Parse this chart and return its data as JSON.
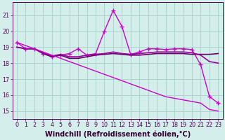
{
  "background_color": "#d4eeeb",
  "grid_color": "#aed4d0",
  "xlabel": "Windchill (Refroidissement éolien,°C)",
  "xlim": [
    -0.5,
    23.5
  ],
  "ylim": [
    14.5,
    21.8
  ],
  "yticks": [
    15,
    16,
    17,
    18,
    19,
    20,
    21
  ],
  "xticks": [
    0,
    1,
    2,
    3,
    4,
    5,
    6,
    7,
    8,
    9,
    10,
    11,
    12,
    13,
    14,
    15,
    16,
    17,
    18,
    19,
    20,
    21,
    22,
    23
  ],
  "series": [
    {
      "x": [
        0,
        1,
        2,
        3,
        4,
        5,
        6,
        7,
        8,
        9,
        10,
        11,
        12,
        13,
        14,
        15,
        16,
        17,
        18,
        19,
        20,
        21,
        22,
        23
      ],
      "y": [
        19.3,
        18.9,
        18.9,
        18.6,
        18.4,
        18.5,
        18.6,
        18.9,
        18.5,
        18.6,
        20.0,
        21.3,
        20.3,
        18.55,
        18.7,
        18.9,
        18.9,
        18.85,
        18.9,
        18.9,
        18.85,
        17.9,
        15.9,
        15.5
      ],
      "marker": "+",
      "linewidth": 1.0,
      "color": "#cc00cc",
      "markersize": 4
    },
    {
      "x": [
        0,
        1,
        2,
        3,
        4,
        5,
        6,
        7,
        8,
        9,
        10,
        11,
        12,
        13,
        14,
        15,
        16,
        17,
        18,
        19,
        20,
        21,
        22,
        23
      ],
      "y": [
        19.0,
        18.9,
        18.9,
        18.6,
        18.4,
        18.5,
        18.3,
        18.3,
        18.4,
        18.5,
        18.55,
        18.6,
        18.55,
        18.5,
        18.5,
        18.55,
        18.6,
        18.6,
        18.6,
        18.6,
        18.55,
        18.55,
        18.55,
        18.6
      ],
      "marker": "",
      "linewidth": 1.2,
      "color": "#660066",
      "markersize": 0
    },
    {
      "x": [
        0,
        1,
        2,
        3,
        4,
        5,
        6,
        7,
        8,
        9,
        10,
        11,
        12,
        13,
        14,
        15,
        16,
        17,
        18,
        19,
        20,
        21,
        22,
        23
      ],
      "y": [
        19.0,
        18.9,
        18.9,
        18.65,
        18.45,
        18.55,
        18.4,
        18.4,
        18.5,
        18.55,
        18.6,
        18.7,
        18.6,
        18.55,
        18.6,
        18.65,
        18.7,
        18.7,
        18.7,
        18.7,
        18.65,
        18.5,
        18.1,
        18.0
      ],
      "marker": "",
      "linewidth": 1.2,
      "color": "#990099",
      "markersize": 0
    },
    {
      "x": [
        0,
        1,
        2,
        3,
        4,
        5,
        6,
        7,
        8,
        9,
        10,
        11,
        12,
        13,
        14,
        15,
        16,
        17,
        18,
        19,
        20,
        21,
        22,
        23
      ],
      "y": [
        19.3,
        19.1,
        18.9,
        18.7,
        18.5,
        18.3,
        18.1,
        17.9,
        17.7,
        17.5,
        17.3,
        17.1,
        16.9,
        16.7,
        16.5,
        16.3,
        16.1,
        15.9,
        15.8,
        15.7,
        15.6,
        15.5,
        15.1,
        15.0
      ],
      "marker": "",
      "linewidth": 1.0,
      "color": "#cc00cc",
      "markersize": 0
    }
  ],
  "tick_fontsize": 5.8,
  "label_fontsize": 7.0
}
